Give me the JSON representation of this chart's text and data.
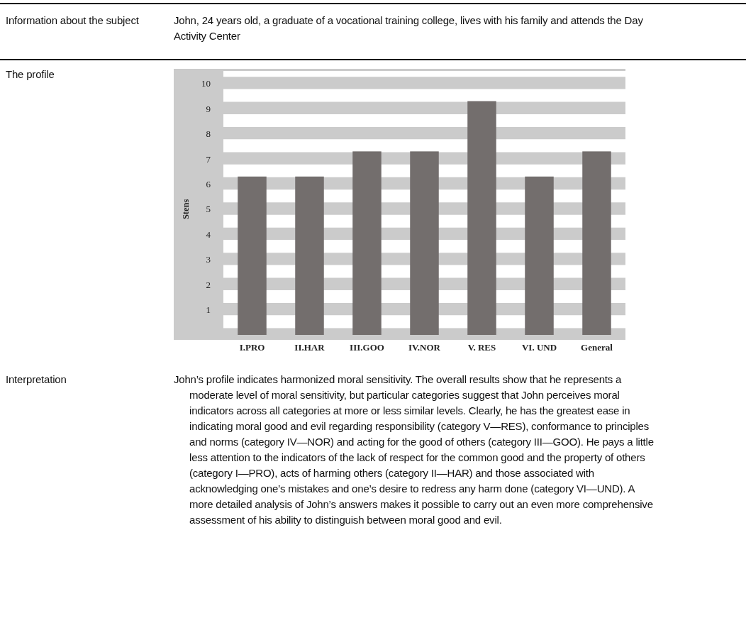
{
  "chart_data": {
    "type": "bar",
    "ylabel": "Stens",
    "categories": [
      "I.PRO",
      "II.HAR",
      "III.GOO",
      "IV.NOR",
      "V. RES",
      "VI. UND",
      "General"
    ],
    "values": [
      6.3,
      6.3,
      7.3,
      7.3,
      9.3,
      6.3,
      7.3
    ],
    "color": "#736e6d",
    "ylim": [
      0,
      10.5
    ],
    "yticks": [
      1,
      2,
      3,
      4,
      5,
      6,
      7,
      8,
      9,
      10
    ],
    "grid": "y",
    "annotations": [
      "Information about the subject",
      "John, 24 years old, a graduate of a vocational training college, lives with his family and attends the Day Activity Center",
      "The profile",
      "Interpretation",
      "John’s profile indicates harmonized moral sensitivity. The overall results show that he represents a moderate level of moral sensitivity, but particular categories suggest that John perceives moral indicators across all categories at more or less similar levels. Clearly, he has the greatest ease in indicating moral good and evil regarding responsibility (category V—RES), conformance to principles and norms (category IV—NOR) and acting for the good of others (category III—GOO). He pays a little less attention to the indicators of the lack of respect for the common good and the property of others (category I—PRO), acts of harming others (category II—HAR) and those associated with acknowledging one’s mistakes and one’s desire to redress any harm done (category VI—UND). A more detailed analysis of John’s answers makes it possible to carry out an even more comprehensive assessment of his ability to distinguish between moral good and evil."
    ]
  }
}
